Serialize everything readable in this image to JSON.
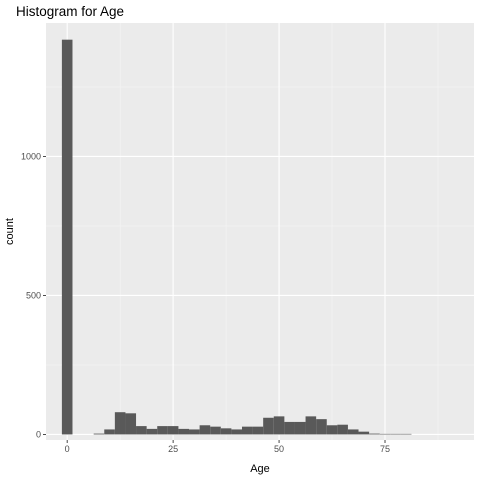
{
  "chart_data": {
    "type": "bar",
    "title": "Histogram for Age",
    "xlabel": "Age",
    "ylabel": "count",
    "xlim": [
      -5,
      96
    ],
    "ylim": [
      -20,
      1480
    ],
    "bin_width": 2.5,
    "x_ticks": [
      0,
      25,
      50,
      75
    ],
    "y_ticks": [
      0,
      500,
      1000
    ],
    "grid": true,
    "legend": "none",
    "colors": {
      "panel": "#ebebeb",
      "grid": "#ffffff",
      "bar": "#595959",
      "tick_text": "#4d4d4d"
    },
    "bins": [
      {
        "x": 0.0,
        "count": 1420
      },
      {
        "x": 7.5,
        "count": 3
      },
      {
        "x": 10.0,
        "count": 18
      },
      {
        "x": 12.5,
        "count": 80
      },
      {
        "x": 15.0,
        "count": 76
      },
      {
        "x": 17.5,
        "count": 30
      },
      {
        "x": 20.0,
        "count": 20
      },
      {
        "x": 22.5,
        "count": 30
      },
      {
        "x": 25.0,
        "count": 30
      },
      {
        "x": 27.5,
        "count": 20
      },
      {
        "x": 30.0,
        "count": 18
      },
      {
        "x": 32.5,
        "count": 33
      },
      {
        "x": 35.0,
        "count": 28
      },
      {
        "x": 37.5,
        "count": 22
      },
      {
        "x": 40.0,
        "count": 18
      },
      {
        "x": 42.5,
        "count": 28
      },
      {
        "x": 45.0,
        "count": 28
      },
      {
        "x": 47.5,
        "count": 60
      },
      {
        "x": 50.0,
        "count": 65
      },
      {
        "x": 52.5,
        "count": 45
      },
      {
        "x": 55.0,
        "count": 45
      },
      {
        "x": 57.5,
        "count": 65
      },
      {
        "x": 60.0,
        "count": 55
      },
      {
        "x": 62.5,
        "count": 33
      },
      {
        "x": 65.0,
        "count": 35
      },
      {
        "x": 67.5,
        "count": 18
      },
      {
        "x": 70.0,
        "count": 10
      },
      {
        "x": 72.5,
        "count": 3
      },
      {
        "x": 75.0,
        "count": 2
      },
      {
        "x": 77.5,
        "count": 2
      },
      {
        "x": 80.0,
        "count": 2
      }
    ]
  }
}
